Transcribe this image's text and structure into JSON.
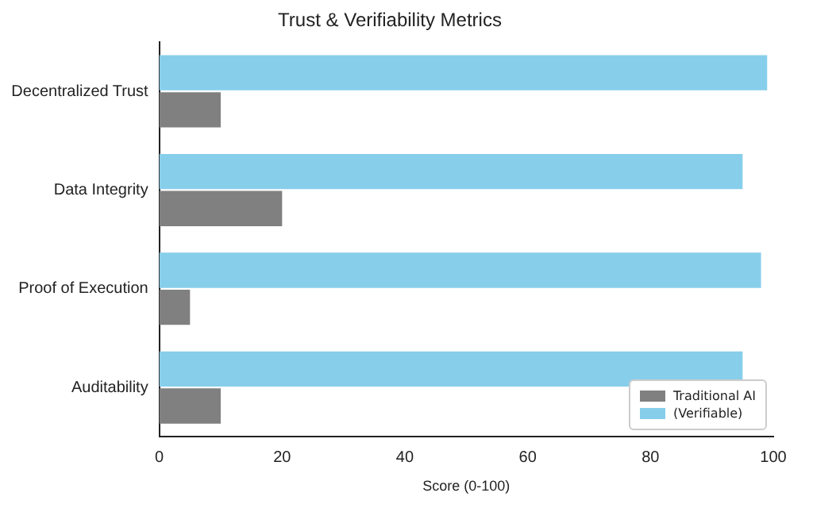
{
  "chart_data": {
    "type": "bar",
    "orientation": "horizontal",
    "title": "Trust & Verifiability Metrics",
    "xlabel": "Score (0-100)",
    "categories": [
      "Decentralized Trust",
      "Data Integrity",
      "Proof of Execution",
      "Auditability"
    ],
    "series": [
      {
        "name": "Traditional AI",
        "color": "#808080",
        "values": [
          10,
          20,
          5,
          10
        ]
      },
      {
        "name": "(Verifiable)",
        "color": "#87ceeb",
        "values": [
          99,
          95,
          98,
          95
        ]
      }
    ],
    "xlim": [
      0,
      100
    ],
    "xticks": [
      0,
      20,
      40,
      60,
      80,
      100
    ],
    "grid": false,
    "legend": "bottom right"
  }
}
